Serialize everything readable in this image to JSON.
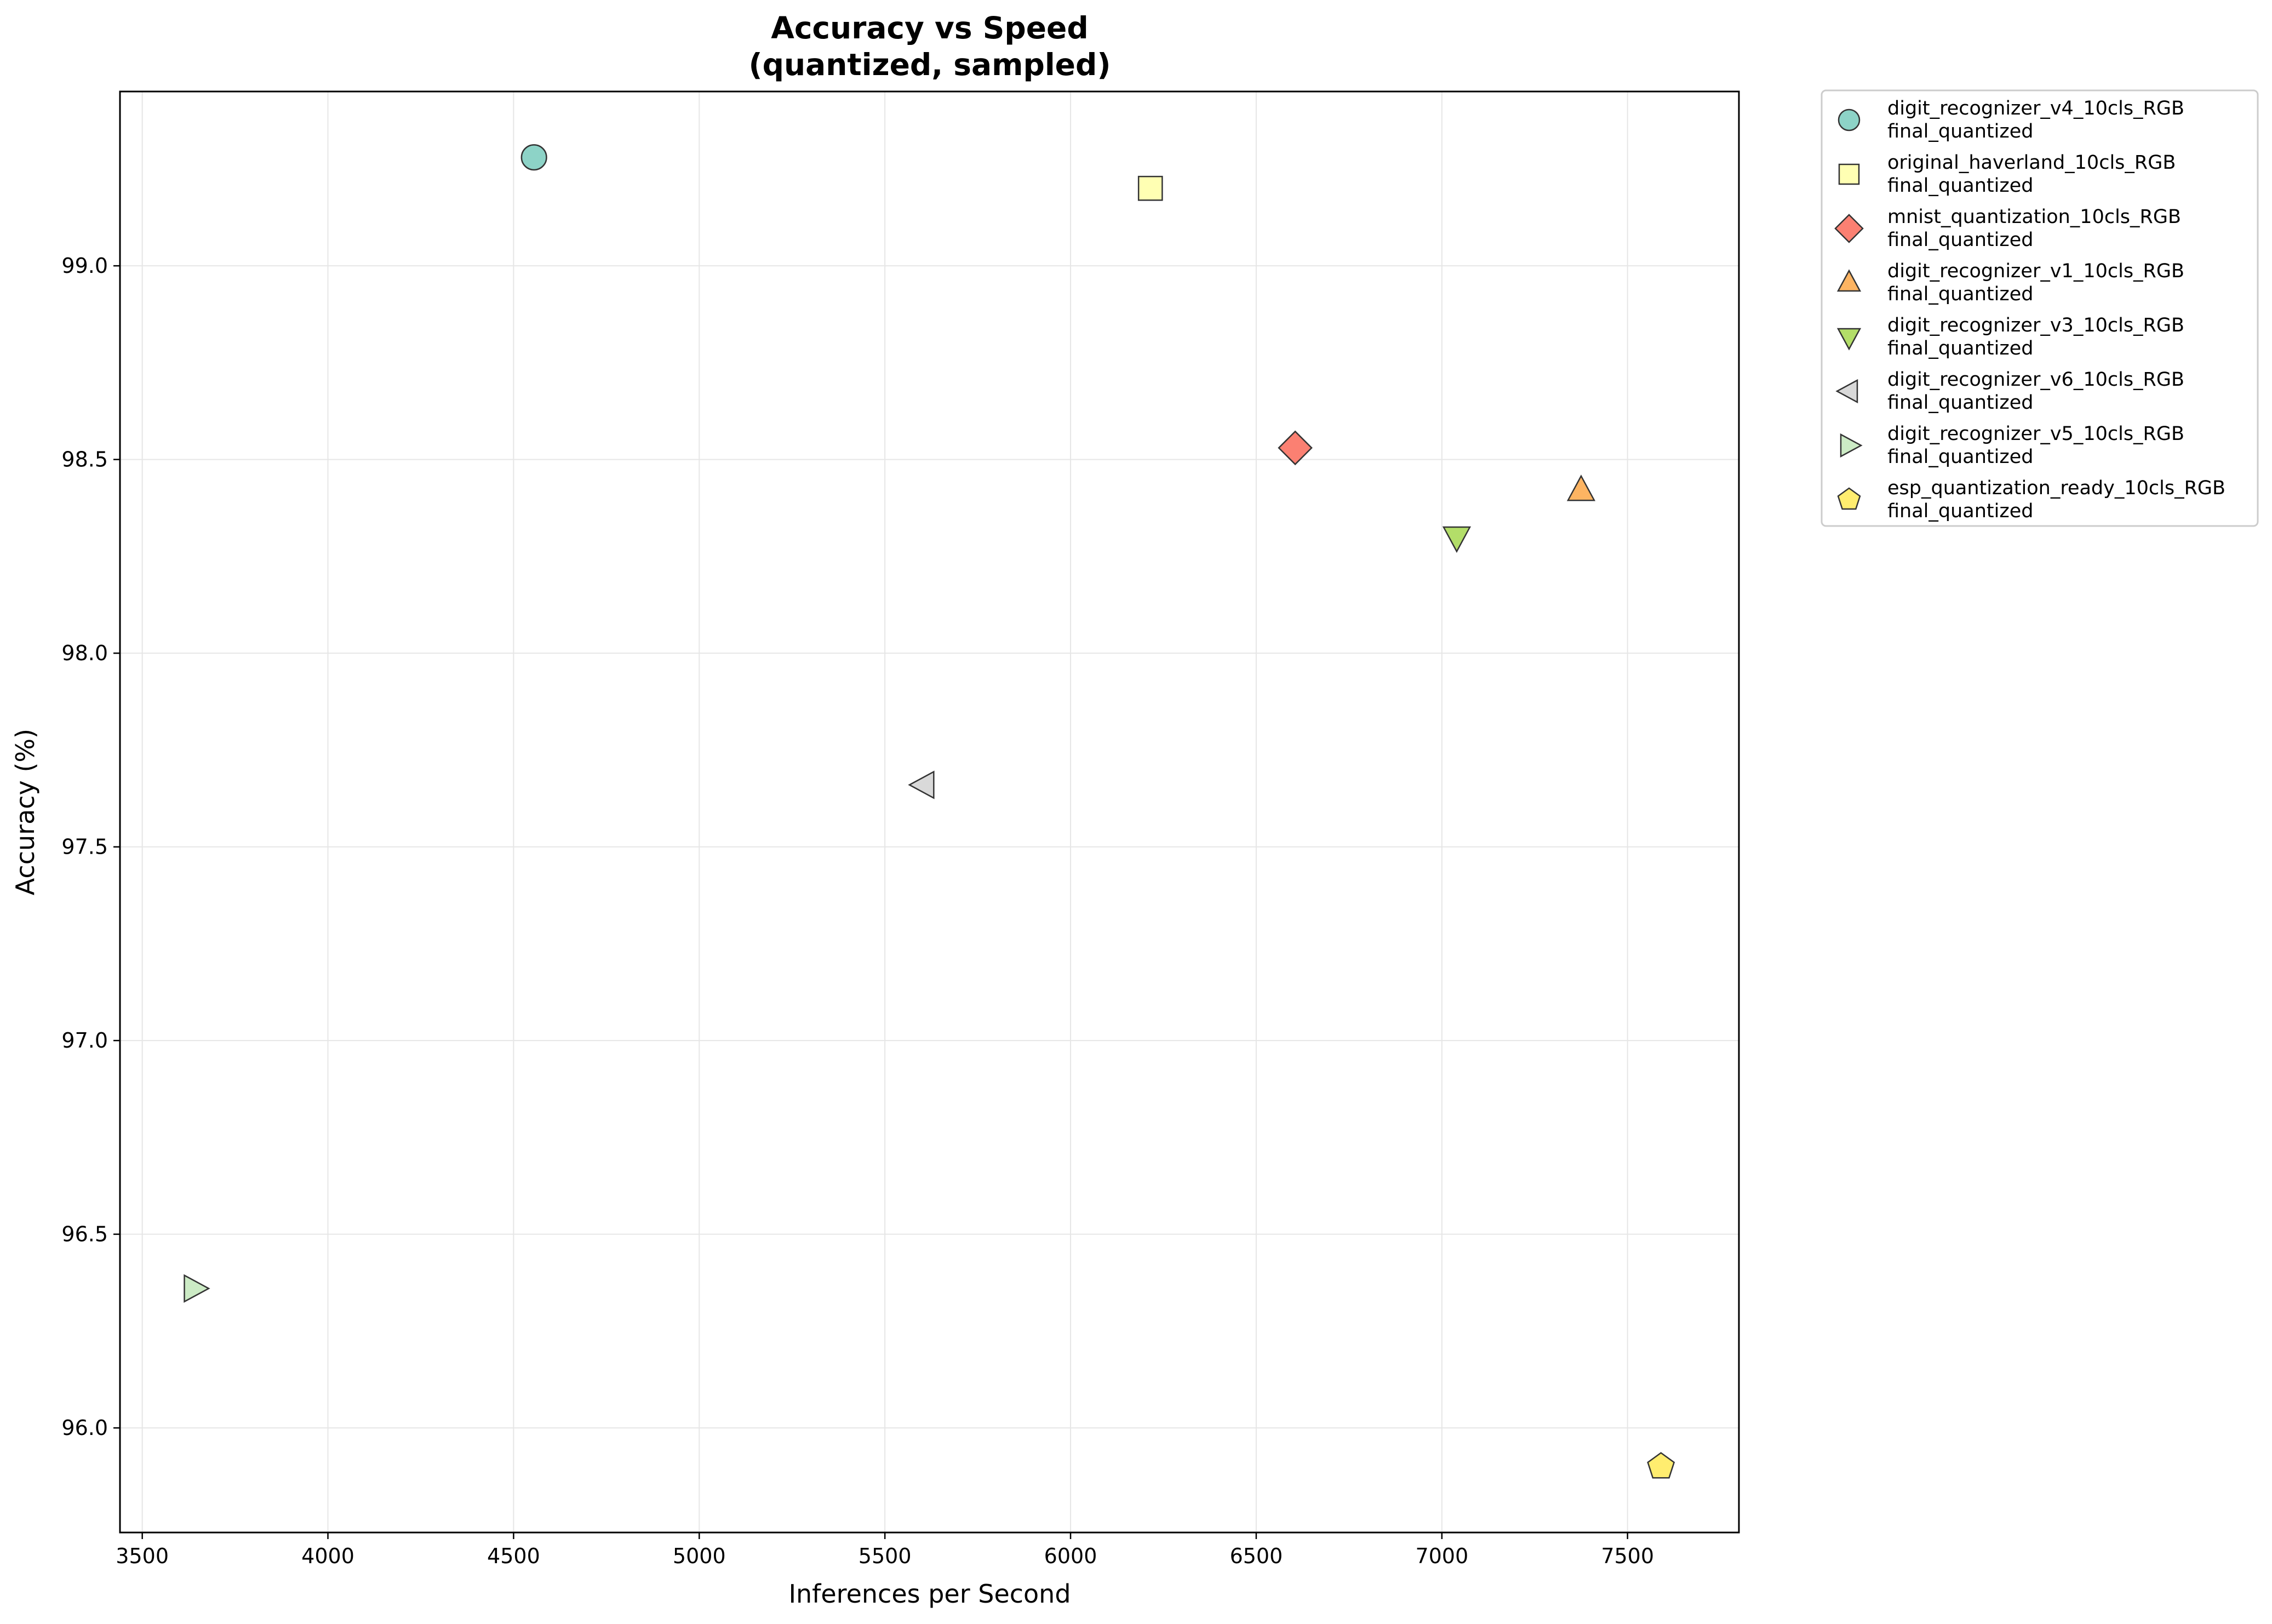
{
  "chart_data": {
    "type": "scatter",
    "title": [
      "Accuracy vs Speed",
      "(quantized, sampled)"
    ],
    "xlabel": "Inferences per Second",
    "ylabel": "Accuracy (%)",
    "xlim": [
      3440,
      7800
    ],
    "ylim": [
      95.73,
      99.45
    ],
    "xticks": [
      3500,
      4000,
      4500,
      5000,
      5500,
      6000,
      6500,
      7000,
      7500
    ],
    "yticks": [
      96.0,
      96.5,
      97.0,
      97.5,
      98.0,
      98.5,
      99.0
    ],
    "ytick_labels": [
      "96.0",
      "96.5",
      "97.0",
      "97.5",
      "98.0",
      "98.5",
      "99.0"
    ],
    "grid": true,
    "legend_placement": "outside-upper-right",
    "series": [
      {
        "name": "digit_recognizer_v4_10cls_RGB",
        "sub": "final_quantized",
        "marker": "circle",
        "color": "#8dd3c7",
        "x": 4555,
        "y": 99.28
      },
      {
        "name": "original_haverland_10cls_RGB",
        "sub": "final_quantized",
        "marker": "square",
        "color": "#ffffb3",
        "x": 6215,
        "y": 99.2
      },
      {
        "name": "mnist_quantization_10cls_RGB",
        "sub": "final_quantized",
        "marker": "diamond",
        "color": "#fb8072",
        "x": 6605,
        "y": 98.53
      },
      {
        "name": "digit_recognizer_v1_10cls_RGB",
        "sub": "final_quantized",
        "marker": "triangle-up",
        "color": "#fdb462",
        "x": 7375,
        "y": 98.42
      },
      {
        "name": "digit_recognizer_v3_10cls_RGB",
        "sub": "final_quantized",
        "marker": "triangle-down",
        "color": "#b3de69",
        "x": 7040,
        "y": 98.3
      },
      {
        "name": "digit_recognizer_v6_10cls_RGB",
        "sub": "final_quantized",
        "marker": "triangle-left",
        "color": "#d9d9d9",
        "x": 5605,
        "y": 97.66
      },
      {
        "name": "digit_recognizer_v5_10cls_RGB",
        "sub": "final_quantized",
        "marker": "triangle-right",
        "color": "#ccebc5",
        "x": 3640,
        "y": 96.36
      },
      {
        "name": "esp_quantization_ready_10cls_RGB",
        "sub": "final_quantized",
        "marker": "pentagon",
        "color": "#ffed6f",
        "x": 7590,
        "y": 95.9
      }
    ]
  }
}
